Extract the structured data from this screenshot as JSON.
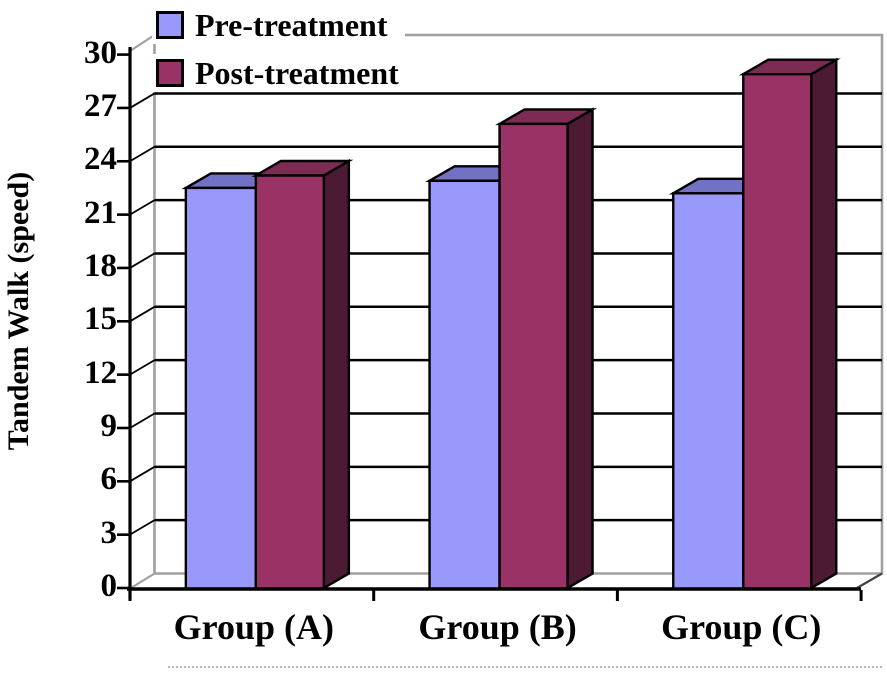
{
  "chart_data": {
    "type": "bar",
    "variant": "3d-clustered-column",
    "title": "",
    "xlabel": "",
    "ylabel": "Tandem Walk (speed)",
    "categories": [
      "Group (A)",
      "Group (B)",
      "Group (C)"
    ],
    "series": [
      {
        "name": "Pre-treatment",
        "color": "#9999fb",
        "color_top": "#7172c4",
        "values": [
          22.5,
          22.9,
          22.2
        ]
      },
      {
        "name": "Post-treatment",
        "color": "#993365",
        "color_top": "#7c2b54",
        "color_side": "#4c1a33",
        "values": [
          23.2,
          26.1,
          28.9
        ]
      }
    ],
    "ylim": [
      0,
      30
    ],
    "ytick_step": 3,
    "yticks": [
      0,
      3,
      6,
      9,
      12,
      15,
      18,
      21,
      24,
      27,
      30
    ],
    "grid": "horizontal",
    "gridline_color": "#000000",
    "wall_color": "#a0a0a0",
    "axis_color": "#000000",
    "background_color": "#ffffff",
    "legend_position": "top-left"
  }
}
